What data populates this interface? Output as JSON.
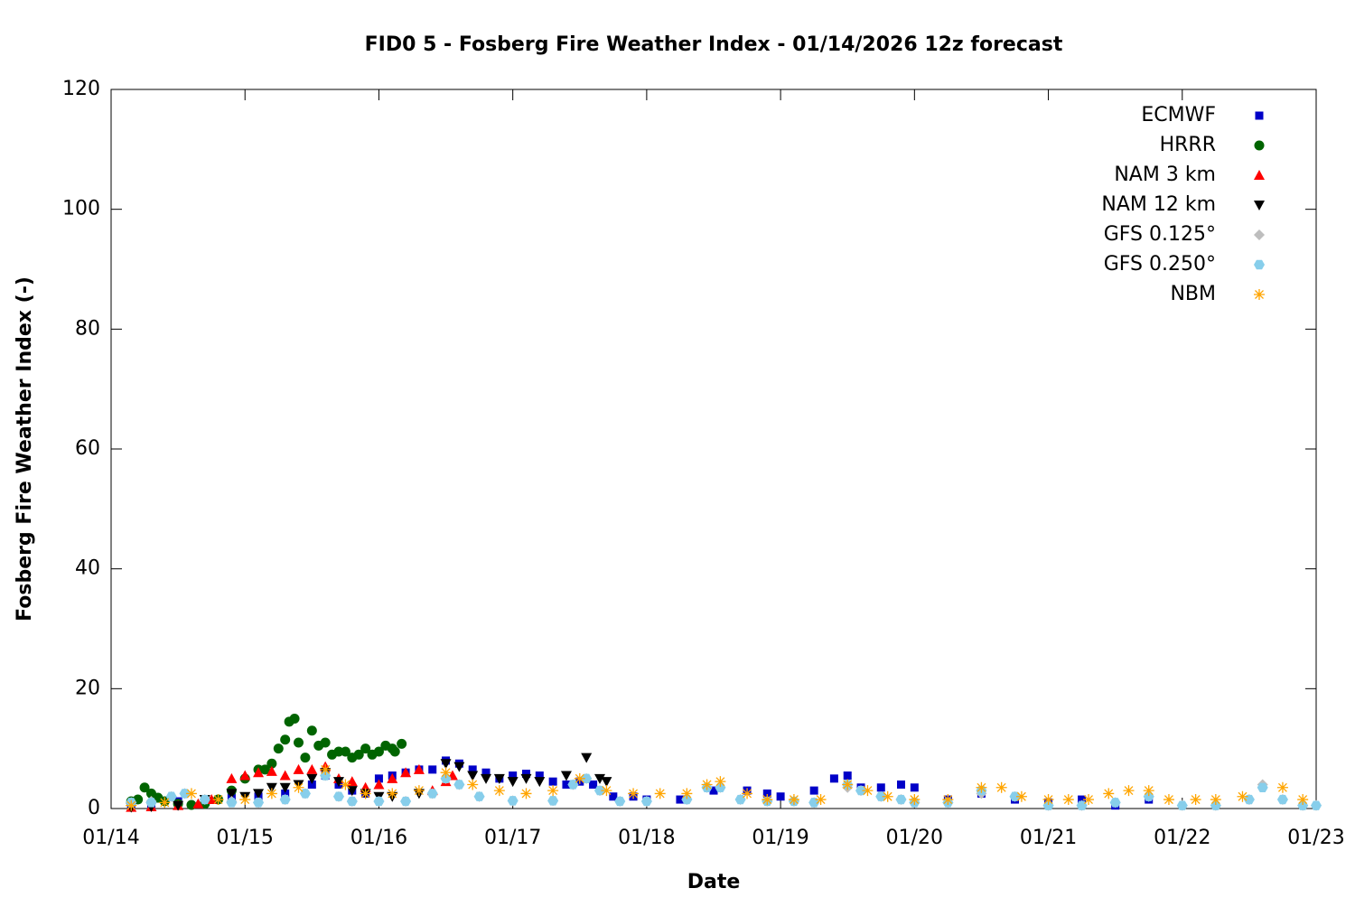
{
  "chart_data": {
    "type": "scatter",
    "title": "FID0 5 - Fosberg Fire Weather Index - 01/14/2026 12z forecast",
    "xlabel": "Date",
    "ylabel": "Fosberg Fire Weather Index (-)",
    "xlim": [
      14,
      23
    ],
    "xticks": [
      {
        "value": 14,
        "label": "01/14"
      },
      {
        "value": 15,
        "label": "01/15"
      },
      {
        "value": 16,
        "label": "01/16"
      },
      {
        "value": 17,
        "label": "01/17"
      },
      {
        "value": 18,
        "label": "01/18"
      },
      {
        "value": 19,
        "label": "01/19"
      },
      {
        "value": 20,
        "label": "01/20"
      },
      {
        "value": 21,
        "label": "01/21"
      },
      {
        "value": 22,
        "label": "01/22"
      },
      {
        "value": 23,
        "label": "01/23"
      }
    ],
    "ylim": [
      0,
      120
    ],
    "yticks": [
      0,
      20,
      40,
      60,
      80,
      100,
      120
    ],
    "legend": "upper right",
    "series": [
      {
        "name": "ECMWF",
        "color": "#0000c8",
        "marker": "square",
        "x": [
          14.15,
          14.3,
          14.5,
          14.7,
          14.9,
          15.1,
          15.3,
          15.5,
          15.6,
          15.7,
          15.8,
          15.9,
          16.0,
          16.1,
          16.2,
          16.3,
          16.4,
          16.5,
          16.6,
          16.7,
          16.8,
          16.9,
          17.0,
          17.1,
          17.2,
          17.3,
          17.4,
          17.5,
          17.6,
          17.75,
          17.9,
          18.0,
          18.25,
          18.5,
          18.75,
          18.9,
          19.0,
          19.25,
          19.4,
          19.5,
          19.6,
          19.75,
          19.9,
          20.0,
          20.25,
          20.5,
          20.75,
          21.0,
          21.25,
          21.5,
          21.75
        ],
        "values": [
          0.5,
          0.8,
          1.2,
          1.5,
          2,
          2,
          2.5,
          4,
          5.5,
          4,
          3,
          2.5,
          5,
          5.5,
          6,
          6.5,
          6.5,
          8,
          7.5,
          6.5,
          6,
          5,
          5.5,
          5.8,
          5.5,
          4.5,
          4,
          4.5,
          4,
          2,
          2,
          1.5,
          1.5,
          3,
          3,
          2.5,
          2,
          3,
          5,
          5.5,
          3.5,
          3.5,
          4,
          3.5,
          1.5,
          2.5,
          1.5,
          1,
          1.5,
          0.5,
          1.5
        ]
      },
      {
        "name": "HRRR",
        "color": "#006400",
        "marker": "circle",
        "x": [
          14.15,
          14.2,
          14.25,
          14.3,
          14.35,
          14.4,
          14.5,
          14.6,
          14.7,
          14.8,
          14.9,
          15.0,
          15.1,
          15.15,
          15.2,
          15.25,
          15.3,
          15.33,
          15.37,
          15.4,
          15.45,
          15.5,
          15.55,
          15.6,
          15.65,
          15.7,
          15.75,
          15.8,
          15.85,
          15.9,
          15.95,
          16.0,
          16.05,
          16.1,
          16.12,
          16.17
        ],
        "values": [
          1.2,
          1.5,
          3.5,
          2.5,
          1.8,
          1.2,
          0.8,
          0.6,
          0.8,
          1.5,
          3,
          5,
          6.5,
          6.5,
          7.5,
          10,
          11.5,
          14.5,
          15,
          11,
          8.5,
          13,
          10.5,
          11,
          9,
          9.5,
          9.5,
          8.5,
          9,
          10,
          9,
          9.5,
          10.5,
          10,
          9.5,
          10.8
        ]
      },
      {
        "name": "NAM 3 km",
        "color": "#ff0000",
        "marker": "triangle-up",
        "x": [
          14.15,
          14.3,
          14.5,
          14.65,
          14.75,
          14.9,
          15.0,
          15.1,
          15.2,
          15.3,
          15.4,
          15.5,
          15.6,
          15.7,
          15.8,
          15.9,
          16.0,
          16.1,
          16.2,
          16.3,
          16.4,
          16.5,
          16.55
        ],
        "values": [
          0.2,
          0.3,
          0.5,
          0.8,
          1.5,
          5,
          5.5,
          6,
          6.2,
          5.5,
          6.5,
          6.5,
          7,
          5,
          4.5,
          3.5,
          4,
          5,
          6,
          6.5,
          3,
          4.5,
          5.5
        ]
      },
      {
        "name": "NAM 12 km",
        "color": "#000000",
        "marker": "triangle-down",
        "x": [
          14.15,
          14.3,
          14.5,
          14.7,
          14.9,
          15.0,
          15.1,
          15.2,
          15.3,
          15.4,
          15.5,
          15.6,
          15.7,
          15.8,
          15.9,
          16.0,
          16.1,
          16.3,
          16.5,
          16.6,
          16.7,
          16.8,
          16.9,
          17.0,
          17.1,
          17.2,
          17.4,
          17.55,
          17.65,
          17.7
        ],
        "values": [
          0.2,
          0.3,
          0.5,
          1.5,
          2.5,
          2,
          2.5,
          3.5,
          3.5,
          4,
          5,
          6,
          4.5,
          3,
          2.5,
          2,
          2,
          2.5,
          7.5,
          7,
          5.5,
          5,
          5,
          4.5,
          5,
          4.5,
          5.5,
          8.5,
          5,
          4.5
        ]
      },
      {
        "name": "GFS 0.125°",
        "color": "#bebebe",
        "marker": "diamond",
        "x": [
          14.15,
          14.3,
          14.45,
          14.55,
          14.7,
          14.9,
          15.1,
          15.3,
          15.45,
          15.6,
          15.7,
          15.8,
          16.0,
          16.2,
          16.4,
          16.5,
          16.6,
          16.75,
          17.0,
          17.3,
          17.45,
          17.55,
          17.65,
          17.8,
          18.0,
          18.3,
          18.45,
          18.55,
          18.7,
          18.9,
          19.1,
          19.25,
          19.5,
          19.6,
          19.75,
          19.9,
          20.0,
          20.25,
          20.5,
          20.75,
          21.0,
          21.25,
          21.5,
          21.75,
          22.0,
          22.25,
          22.5,
          22.6,
          22.75,
          22.9,
          23.0
        ],
        "values": [
          1,
          1.2,
          2,
          2.5,
          1.5,
          1.2,
          1,
          1.5,
          2.5,
          5.5,
          2,
          1.2,
          1.2,
          1.2,
          2.5,
          5,
          4,
          2,
          1.3,
          1.3,
          4,
          5,
          3,
          1.2,
          1.2,
          1.5,
          3.5,
          3.5,
          1.5,
          1.2,
          1.2,
          1,
          3.5,
          3,
          2,
          1.5,
          1,
          1,
          2.5,
          2,
          0.5,
          0.5,
          1,
          2,
          0.5,
          0.5,
          1.5,
          4,
          1.5,
          0.5,
          0.5
        ]
      },
      {
        "name": "GFS 0.250°",
        "color": "#87ceeb",
        "marker": "hexagon",
        "x": [
          14.15,
          14.3,
          14.45,
          14.55,
          14.7,
          14.9,
          15.1,
          15.3,
          15.45,
          15.6,
          15.7,
          15.8,
          16.0,
          16.2,
          16.4,
          16.5,
          16.6,
          16.75,
          17.0,
          17.3,
          17.45,
          17.55,
          17.65,
          17.8,
          18.0,
          18.3,
          18.45,
          18.55,
          18.7,
          18.9,
          19.1,
          19.25,
          19.5,
          19.6,
          19.75,
          19.9,
          20.0,
          20.25,
          20.5,
          20.75,
          21.0,
          21.25,
          21.5,
          21.75,
          22.0,
          22.25,
          22.5,
          22.6,
          22.75,
          22.9,
          23.0
        ],
        "values": [
          1,
          1,
          2,
          2.5,
          1.5,
          1,
          1,
          1.5,
          2.5,
          5.5,
          2,
          1.2,
          1.2,
          1.2,
          2.5,
          5,
          4,
          2,
          1.3,
          1.3,
          4,
          5,
          3,
          1.2,
          1.2,
          1.5,
          3.5,
          3.5,
          1.5,
          1.2,
          1.2,
          1,
          4,
          3,
          2,
          1.5,
          1,
          1,
          3,
          2,
          0.5,
          0.5,
          1,
          2,
          0.5,
          0.5,
          1.5,
          3.5,
          1.5,
          0.5,
          0.5
        ]
      },
      {
        "name": "NBM",
        "color": "#ffa500",
        "marker": "asterisk",
        "x": [
          14.15,
          14.4,
          14.6,
          14.8,
          15.0,
          15.2,
          15.4,
          15.6,
          15.75,
          15.9,
          16.1,
          16.3,
          16.5,
          16.7,
          16.9,
          17.1,
          17.3,
          17.5,
          17.7,
          17.9,
          18.1,
          18.3,
          18.45,
          18.55,
          18.75,
          18.9,
          19.1,
          19.3,
          19.5,
          19.65,
          19.8,
          20.0,
          20.25,
          20.5,
          20.65,
          20.8,
          21.0,
          21.15,
          21.3,
          21.45,
          21.6,
          21.75,
          21.9,
          22.1,
          22.25,
          22.45,
          22.75,
          22.9
        ],
        "values": [
          0.5,
          1,
          2.5,
          1.5,
          1.5,
          2.5,
          3.5,
          6.5,
          4,
          2.5,
          2.5,
          3,
          6,
          4,
          3,
          2.5,
          3,
          5,
          3,
          2.5,
          2.5,
          2.5,
          4,
          4.5,
          2.5,
          1.5,
          1.5,
          1.5,
          4,
          3,
          2,
          1.5,
          1.5,
          3.5,
          3.5,
          2,
          1.5,
          1.5,
          1.5,
          2.5,
          3,
          3,
          1.5,
          1.5,
          1.5,
          2,
          3.5,
          1.5
        ]
      }
    ]
  }
}
